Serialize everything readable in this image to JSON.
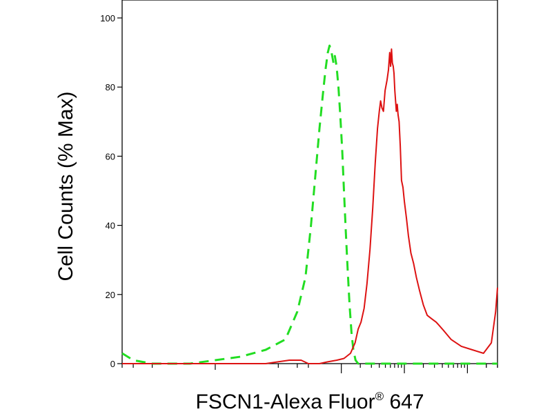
{
  "chart_data": {
    "type": "line",
    "xlabel": "FSCN1-Alexa Fluor",
    "xlabel_superscript": "®",
    "xlabel_suffix": " 647",
    "ylabel": "Cell Counts (% Max)",
    "ylim": [
      0,
      100
    ],
    "y_ticks": [
      "0",
      "20",
      "40",
      "60",
      "80",
      "100"
    ],
    "x_scale": "log",
    "xlim": [
      -300,
      300000
    ],
    "grid": false,
    "legend": "none",
    "series": [
      {
        "color": "#22dd22",
        "style": "dashed",
        "points": [
          [
            -300,
            3
          ],
          [
            -200,
            1
          ],
          [
            -100,
            0
          ],
          [
            -40,
            0
          ],
          [
            0,
            1
          ],
          [
            40,
            2
          ],
          [
            80,
            4
          ],
          [
            130,
            7
          ],
          [
            200,
            15
          ],
          [
            270,
            25
          ],
          [
            330,
            40
          ],
          [
            390,
            55
          ],
          [
            450,
            68
          ],
          [
            510,
            78
          ],
          [
            560,
            85
          ],
          [
            610,
            90
          ],
          [
            650,
            92
          ],
          [
            700,
            90
          ],
          [
            750,
            87
          ],
          [
            790,
            89
          ],
          [
            840,
            86
          ],
          [
            900,
            80
          ],
          [
            960,
            72
          ],
          [
            1030,
            62
          ],
          [
            1100,
            50
          ],
          [
            1180,
            38
          ],
          [
            1260,
            27
          ],
          [
            1350,
            17
          ],
          [
            1450,
            9
          ],
          [
            1550,
            4
          ],
          [
            1680,
            1
          ],
          [
            1850,
            0
          ],
          [
            3000,
            0
          ],
          [
            10000,
            0
          ],
          [
            50000,
            0
          ],
          [
            300000,
            0
          ]
        ]
      },
      {
        "color": "#dd1111",
        "style": "solid",
        "points": [
          [
            -300,
            0
          ],
          [
            -100,
            0
          ],
          [
            0,
            0
          ],
          [
            80,
            0
          ],
          [
            150,
            1
          ],
          [
            230,
            1
          ],
          [
            300,
            0
          ],
          [
            450,
            0
          ],
          [
            600,
            0.5
          ],
          [
            850,
            1
          ],
          [
            1100,
            1.5
          ],
          [
            1400,
            3
          ],
          [
            1650,
            6
          ],
          [
            1850,
            10
          ],
          [
            2050,
            12
          ],
          [
            2300,
            16
          ],
          [
            2550,
            23
          ],
          [
            2850,
            33
          ],
          [
            3150,
            45
          ],
          [
            3450,
            58
          ],
          [
            3750,
            68
          ],
          [
            4000,
            73
          ],
          [
            4200,
            76
          ],
          [
            4400,
            74
          ],
          [
            4650,
            73
          ],
          [
            4950,
            79
          ],
          [
            5300,
            82
          ],
          [
            5600,
            85
          ],
          [
            5850,
            90
          ],
          [
            6050,
            86
          ],
          [
            6250,
            91
          ],
          [
            6450,
            87
          ],
          [
            6650,
            86
          ],
          [
            6850,
            84
          ],
          [
            7050,
            79
          ],
          [
            7250,
            76
          ],
          [
            7450,
            73
          ],
          [
            7700,
            75
          ],
          [
            7950,
            72
          ],
          [
            8250,
            70
          ],
          [
            8600,
            63
          ],
          [
            9000,
            53
          ],
          [
            9500,
            51
          ],
          [
            10000,
            47
          ],
          [
            10800,
            42
          ],
          [
            11600,
            37
          ],
          [
            12700,
            32
          ],
          [
            14000,
            29
          ],
          [
            15500,
            25
          ],
          [
            17500,
            21
          ],
          [
            20000,
            17
          ],
          [
            23000,
            14
          ],
          [
            27000,
            13
          ],
          [
            32000,
            12
          ],
          [
            40000,
            10
          ],
          [
            55000,
            7
          ],
          [
            80000,
            5
          ],
          [
            120000,
            4
          ],
          [
            180000,
            3
          ],
          [
            240000,
            6
          ],
          [
            280000,
            15
          ],
          [
            300000,
            22
          ]
        ]
      }
    ]
  }
}
